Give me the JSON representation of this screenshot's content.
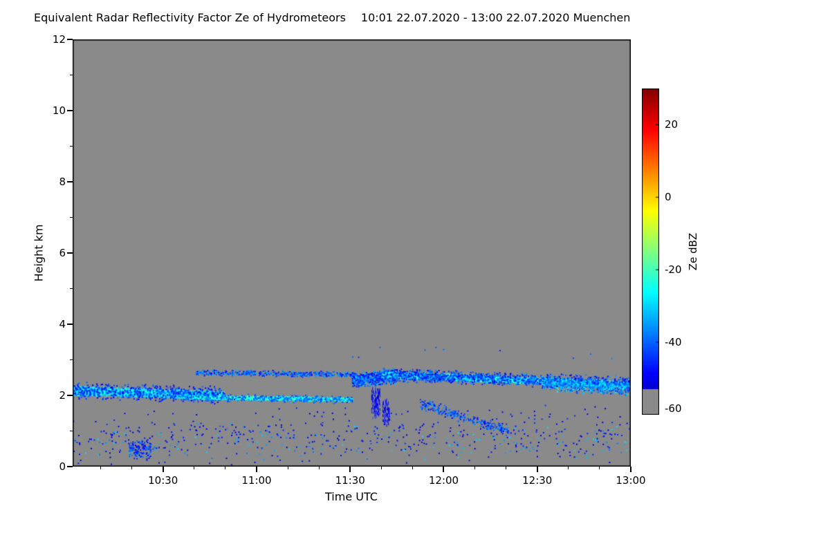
{
  "chart_data": {
    "type": "heatmap",
    "title": "Equivalent Radar Reflectivity Factor Ze of Hydrometeors",
    "subtitle": "10:01 22.07.2020 - 13:00 22.07.2020 Muenchen",
    "station": "Muenchen",
    "xlabel": "Time UTC",
    "ylabel": "Height km",
    "x_start": "10:01",
    "x_end": "13:00",
    "x_ticks": [
      "10:30",
      "11:00",
      "11:30",
      "12:00",
      "12:30",
      "13:00"
    ],
    "y_range": [
      0,
      12
    ],
    "y_ticks": [
      0,
      2,
      4,
      6,
      8,
      10,
      12
    ],
    "background_color": "#8a8a8a",
    "grid": false,
    "seed": 1337,
    "colorbar": {
      "label": "Ze dBZ",
      "min": -60,
      "max": 30,
      "ticks": [
        20,
        0,
        -20,
        -40,
        -60
      ],
      "colormap": "jet_with_gray_floor",
      "gray_below": -53
    },
    "features": [
      {
        "name": "early-cloud-band",
        "t0": 0.0,
        "t1": 0.27,
        "h0": 2.15,
        "h1": 2.02,
        "spread": 0.14,
        "count": 2400,
        "vmin": -34,
        "vmax": -20
      },
      {
        "name": "early-cloud-fringe",
        "t0": 0.0,
        "t1": 0.27,
        "h0": 2.15,
        "h1": 2.02,
        "spread": 0.26,
        "count": 600,
        "vmin": -52,
        "vmax": -38
      },
      {
        "name": "thin-bright-line",
        "t0": 0.2,
        "t1": 0.5,
        "h0": 1.97,
        "h1": 1.9,
        "spread": 0.06,
        "count": 1500,
        "vmin": -28,
        "vmax": -18
      },
      {
        "name": "thin-line-fringe",
        "t0": 0.2,
        "t1": 0.5,
        "h0": 1.97,
        "h1": 1.9,
        "spread": 0.12,
        "count": 350,
        "vmin": -46,
        "vmax": -32
      },
      {
        "name": "upper-sparse-band",
        "t0": 0.22,
        "t1": 0.5,
        "h0": 2.66,
        "h1": 2.6,
        "spread": 0.09,
        "count": 420,
        "vmin": -50,
        "vmax": -32
      },
      {
        "name": "midday-dense-patch",
        "t0": 0.5,
        "t1": 0.58,
        "h0": 2.45,
        "h1": 2.55,
        "spread": 0.22,
        "count": 650,
        "vmin": -52,
        "vmax": -30
      },
      {
        "name": "virga-streak-1",
        "t0": 0.535,
        "t1": 0.55,
        "h0": 1.85,
        "h1": 1.8,
        "spread": 0.45,
        "count": 260,
        "vmin": -57,
        "vmax": -45,
        "dw": 1,
        "dh": 4
      },
      {
        "name": "virga-streak-2",
        "t0": 0.555,
        "t1": 0.567,
        "h0": 1.6,
        "h1": 1.55,
        "spread": 0.38,
        "count": 150,
        "vmin": -57,
        "vmax": -46,
        "dw": 1,
        "dh": 4
      },
      {
        "name": "main-cloud-band",
        "t0": 0.55,
        "t1": 1.0,
        "h0": 2.6,
        "h1": 2.32,
        "spread": 0.1,
        "count": 3000,
        "vmin": -32,
        "vmax": -18
      },
      {
        "name": "main-band-fringe",
        "t0": 0.55,
        "t1": 1.0,
        "h0": 2.6,
        "h1": 2.35,
        "spread": 0.2,
        "count": 1300,
        "vmin": -52,
        "vmax": -34
      },
      {
        "name": "band-widening-right",
        "t0": 0.84,
        "t1": 1.0,
        "h0": 2.35,
        "h1": 2.2,
        "spread": 0.22,
        "count": 650,
        "vmin": -46,
        "vmax": -24
      },
      {
        "name": "descending-trail",
        "t0": 0.62,
        "t1": 0.78,
        "h0": 1.8,
        "h1": 1.0,
        "spread": 0.18,
        "count": 260,
        "vmin": -50,
        "vmax": -34
      },
      {
        "name": "low-level-scatter-dark",
        "t0": 0.0,
        "t1": 1.0,
        "h0": 0.9,
        "h1": 0.9,
        "spread": 0.85,
        "count": 650,
        "vmin": -57,
        "vmax": -44
      },
      {
        "name": "low-level-scatter-cyan",
        "t0": 0.0,
        "t1": 1.0,
        "h0": 0.7,
        "h1": 0.7,
        "spread": 0.6,
        "count": 140,
        "vmin": -38,
        "vmax": -28
      },
      {
        "name": "early-low-cluster",
        "t0": 0.1,
        "t1": 0.14,
        "h0": 0.5,
        "h1": 0.5,
        "spread": 0.35,
        "count": 130,
        "vmin": -52,
        "vmax": -36
      },
      {
        "name": "isolated-high-dots",
        "t0": 0.5,
        "t1": 1.0,
        "h0": 3.3,
        "h1": 3.2,
        "spread": 0.25,
        "count": 10,
        "vmin": -48,
        "vmax": -36
      }
    ]
  }
}
